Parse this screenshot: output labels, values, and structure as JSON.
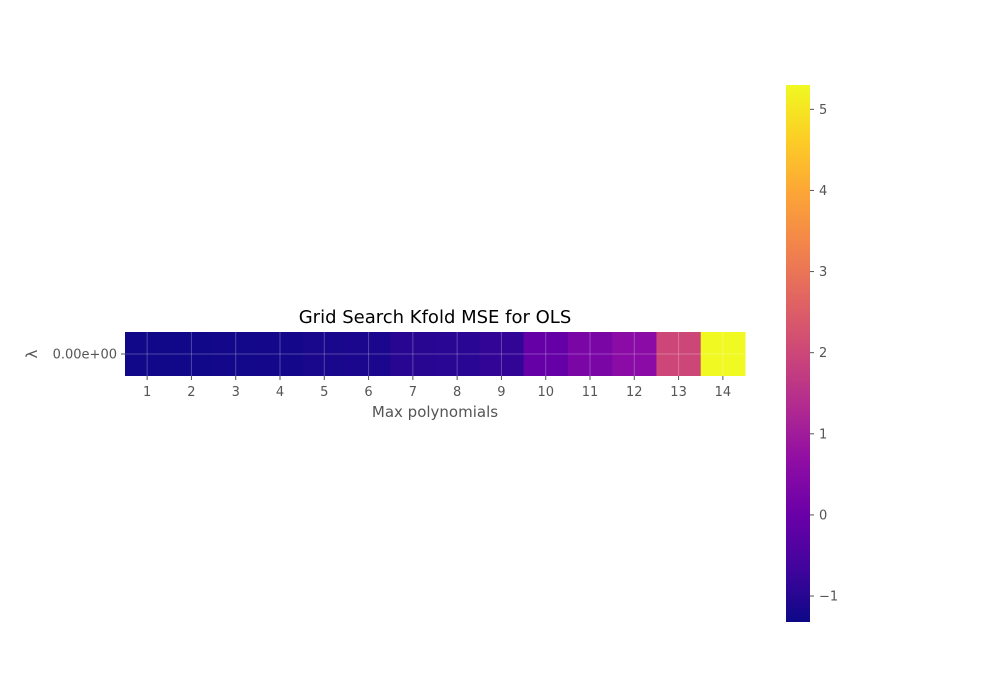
{
  "chart_data": {
    "type": "heatmap",
    "title": "Grid Search Kfold MSE for OLS",
    "xlabel": "Max polynomials",
    "ylabel": "λ",
    "x_categories": [
      "1",
      "2",
      "3",
      "4",
      "5",
      "6",
      "7",
      "8",
      "9",
      "10",
      "11",
      "12",
      "13",
      "14"
    ],
    "y_categories": [
      "0.00e+00"
    ],
    "values": [
      [
        -1.28,
        -1.27,
        -1.24,
        -1.22,
        -1.17,
        -1.15,
        -0.98,
        -0.96,
        -0.84,
        -0.07,
        0.3,
        0.58,
        1.98,
        5.35
      ]
    ],
    "colorbar": {
      "range": [
        -1.32,
        5.3
      ],
      "ticks": [
        -1,
        0,
        1,
        2,
        3,
        4,
        5
      ],
      "tick_labels": [
        "−1",
        "0",
        "1",
        "2",
        "3",
        "4",
        "5"
      ],
      "colormap": "plasma"
    },
    "grid": true
  }
}
